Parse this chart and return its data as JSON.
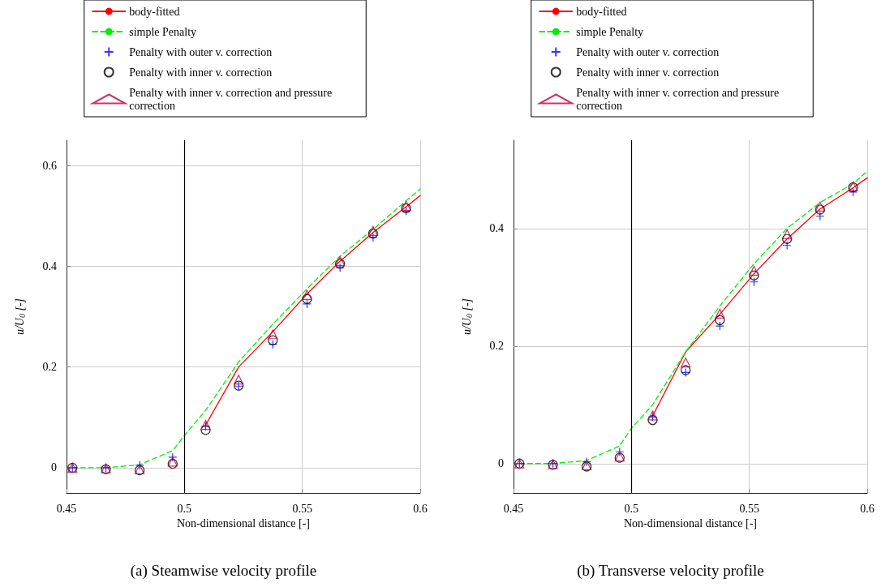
{
  "chart_data": [
    {
      "type": "scatter",
      "title": "(a) Steamwise velocity profile",
      "xlabel": "Non-dimensional distance [-]",
      "ylabel": "u/U$_{0}$ [-]",
      "x": [
        0.4525,
        0.4667,
        0.481,
        0.495,
        0.509,
        0.523,
        0.5375,
        0.552,
        0.566,
        0.58,
        0.594
      ],
      "series": [
        {
          "name": "body-fitted",
          "type": "line",
          "color": "#ff0000",
          "marker": "none",
          "line_style": "solid",
          "x": [
            0.509,
            0.523,
            0.5375,
            0.552,
            0.566,
            0.58,
            0.594,
            0.6
          ],
          "values": [
            0.085,
            0.2,
            0.27,
            0.345,
            0.41,
            0.467,
            0.518,
            0.54
          ]
        },
        {
          "name": "simple Penalty",
          "type": "line",
          "color": "#00ee00",
          "marker": "none",
          "line_style": "dashed",
          "x": [
            0.4525,
            0.4667,
            0.481,
            0.495,
            0.5,
            0.509,
            0.523,
            0.5375,
            0.552,
            0.566,
            0.58,
            0.594,
            0.6
          ],
          "values": [
            0,
            0,
            0.006,
            0.034,
            0.064,
            0.114,
            0.21,
            0.285,
            0.355,
            0.42,
            0.473,
            0.53,
            0.553
          ]
        },
        {
          "name": "Penalty with outer v. correction",
          "color": "#0000ff",
          "marker": "cross",
          "values": [
            0,
            0,
            0.005,
            0.021,
            0.082,
            0.162,
            0.245,
            0.325,
            0.397,
            0.457,
            0.509
          ]
        },
        {
          "name": "Penalty with inner v. correction",
          "color": "#000000",
          "marker": "circle",
          "values": [
            0,
            -0.003,
            -0.005,
            0.008,
            0.075,
            0.163,
            0.253,
            0.335,
            0.405,
            0.465,
            0.515
          ]
        },
        {
          "name": "Penalty with inner v. correction and pressure correction",
          "color": "#c0004a",
          "marker": "triangle",
          "values": [
            0,
            -0.001,
            -0.003,
            0.012,
            0.085,
            0.175,
            0.265,
            0.343,
            0.41,
            0.47,
            0.52
          ]
        }
      ],
      "xlim": [
        0.45,
        0.6
      ],
      "xticks": [
        0.45,
        0.5,
        0.55,
        0.6
      ],
      "ylim": [
        -0.05,
        0.65
      ],
      "yticks": [
        0,
        0.2,
        0.4,
        0.6
      ],
      "grid": true,
      "legend": "top",
      "ref_lines": [
        {
          "axis": "x",
          "value": 0.5,
          "color": "#000000",
          "line_style": "solid"
        }
      ]
    },
    {
      "type": "scatter",
      "title": "(b) Transverse velocity profile",
      "xlabel": "Non-dimensional distance [-]",
      "ylabel": "u/U$_{0}$ [-]",
      "x": [
        0.4525,
        0.4667,
        0.481,
        0.495,
        0.509,
        0.523,
        0.5375,
        0.552,
        0.566,
        0.58,
        0.594
      ],
      "series": [
        {
          "name": "body-fitted",
          "type": "line",
          "color": "#ff0000",
          "marker": "none",
          "line_style": "solid",
          "x": [
            0.509,
            0.523,
            0.5375,
            0.552,
            0.566,
            0.58,
            0.594,
            0.6
          ],
          "values": [
            0.081,
            0.19,
            0.254,
            0.323,
            0.382,
            0.433,
            0.469,
            0.486
          ]
        },
        {
          "name": "simple Penalty",
          "type": "line",
          "color": "#00ee00",
          "marker": "none",
          "line_style": "dashed",
          "x": [
            0.4525,
            0.4667,
            0.481,
            0.495,
            0.5,
            0.509,
            0.523,
            0.5375,
            0.552,
            0.566,
            0.58,
            0.594,
            0.6
          ],
          "values": [
            0,
            0,
            0.005,
            0.03,
            0.06,
            0.1,
            0.19,
            0.268,
            0.34,
            0.4,
            0.444,
            0.476,
            0.497
          ]
        },
        {
          "name": "Penalty with outer v. correction",
          "color": "#0000ff",
          "marker": "cross",
          "values": [
            0,
            0,
            0.003,
            0.02,
            0.079,
            0.155,
            0.234,
            0.309,
            0.371,
            0.421,
            0.462
          ]
        },
        {
          "name": "Penalty with inner v. correction",
          "color": "#000000",
          "marker": "circle",
          "values": [
            0,
            -0.002,
            -0.005,
            0.01,
            0.074,
            0.159,
            0.244,
            0.32,
            0.382,
            0.432,
            0.47
          ]
        },
        {
          "name": "Penalty with inner v. correction and pressure correction",
          "color": "#c0004a",
          "marker": "triangle",
          "values": [
            0,
            -0.001,
            -0.003,
            0.012,
            0.082,
            0.172,
            0.255,
            0.328,
            0.39,
            0.437,
            0.472
          ]
        }
      ],
      "xlim": [
        0.45,
        0.6
      ],
      "xticks": [
        0.45,
        0.5,
        0.55,
        0.6
      ],
      "ylim": [
        -0.05,
        0.55
      ],
      "yticks": [
        0,
        0.2,
        0.4
      ],
      "grid": true,
      "legend": "top",
      "ref_lines": [
        {
          "axis": "x",
          "value": 0.5,
          "color": "#000000",
          "line_style": "solid"
        }
      ]
    }
  ]
}
